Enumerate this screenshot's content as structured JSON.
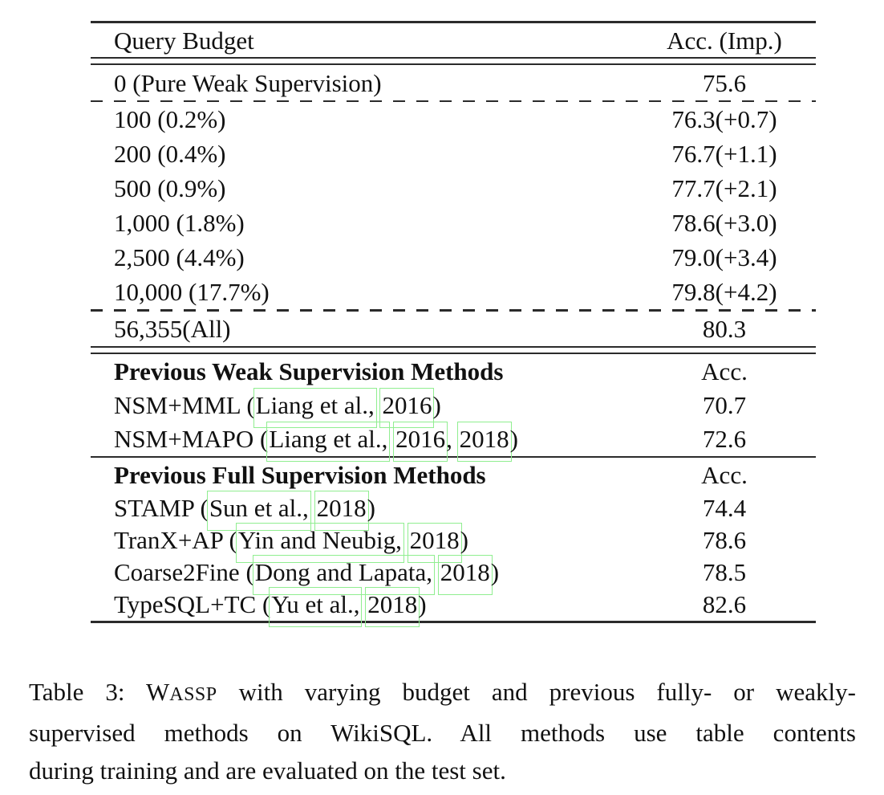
{
  "table": {
    "header": {
      "budget": "Query Budget",
      "acc": "Acc. (Imp.)"
    },
    "zero_row": {
      "label": "0 (Pure Weak Supervision)",
      "value": "75.6"
    },
    "budget_rows": [
      {
        "label": "100 (0.2%)",
        "value": "76.3(+0.7)"
      },
      {
        "label": "200 (0.4%)",
        "value": "76.7(+1.1)"
      },
      {
        "label": "500 (0.9%)",
        "value": "77.7(+2.1)"
      },
      {
        "label": "1,000 (1.8%)",
        "value": "78.6(+3.0)"
      },
      {
        "label": "2,500 (4.4%)",
        "value": "79.0(+3.4)"
      },
      {
        "label": "10,000 (17.7%)",
        "value": "79.8(+4.2)"
      }
    ],
    "all_row": {
      "label": "56,355(All)",
      "value": "80.3"
    },
    "weak_section": {
      "title": "Previous Weak Supervision Methods",
      "acc": "Acc.",
      "rows": [
        {
          "segments": [
            {
              "text": "NSM+MML ("
            },
            {
              "text": "Liang et al.,",
              "cite": true
            },
            {
              "text": " "
            },
            {
              "text": "2016",
              "cite": true
            },
            {
              "text": ")"
            }
          ],
          "value": "70.7"
        },
        {
          "segments": [
            {
              "text": "NSM+MAPO ("
            },
            {
              "text": "Liang et al.,",
              "cite": true
            },
            {
              "text": " "
            },
            {
              "text": "2016",
              "cite": true
            },
            {
              "text": ", "
            },
            {
              "text": "2018",
              "cite": true
            },
            {
              "text": ")"
            }
          ],
          "value": "72.6"
        }
      ]
    },
    "full_section": {
      "title": "Previous Full Supervision Methods",
      "acc": "Acc.",
      "rows": [
        {
          "segments": [
            {
              "text": "STAMP ("
            },
            {
              "text": "Sun et al.,",
              "cite": true
            },
            {
              "text": " "
            },
            {
              "text": "2018",
              "cite": true
            },
            {
              "text": ")"
            }
          ],
          "value": "74.4"
        },
        {
          "segments": [
            {
              "text": "TranX+AP ("
            },
            {
              "text": "Yin and Neubig,",
              "cite": true
            },
            {
              "text": " "
            },
            {
              "text": "2018",
              "cite": true
            },
            {
              "text": ")"
            }
          ],
          "value": "78.6"
        },
        {
          "segments": [
            {
              "text": "Coarse2Fine ("
            },
            {
              "text": "Dong and Lapata,",
              "cite": true
            },
            {
              "text": " "
            },
            {
              "text": "2018",
              "cite": true
            },
            {
              "text": ")"
            }
          ],
          "value": "78.5"
        },
        {
          "segments": [
            {
              "text": "TypeSQL+TC ("
            },
            {
              "text": "Yu et al.,",
              "cite": true
            },
            {
              "text": " "
            },
            {
              "text": "2018",
              "cite": true
            },
            {
              "text": ")"
            }
          ],
          "value": "82.6"
        }
      ]
    }
  },
  "caption": {
    "line1_pre": "Table 3: W",
    "line1_sc": "ASSP",
    "line1_rest": " with varying budget and previous fully- or weakly-",
    "line2": "supervised methods on WikiSQL. All methods use table contents",
    "line3": "during training and are evaluated on the test set."
  },
  "colors": {
    "link_box": "#90ee90",
    "text": "#111111",
    "rule": "#2b2b2b"
  }
}
